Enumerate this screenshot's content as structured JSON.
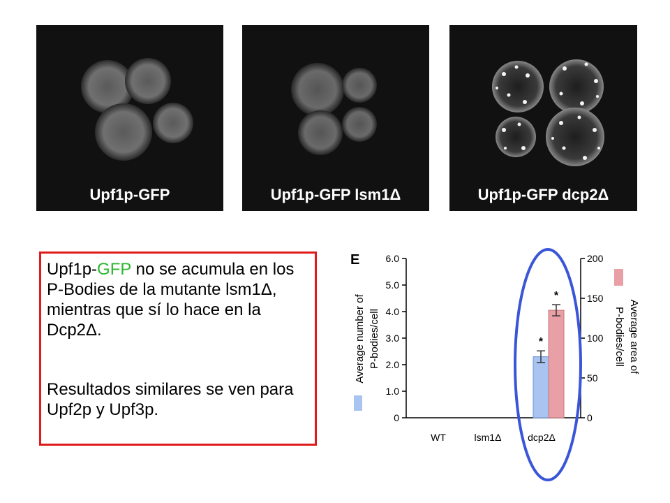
{
  "panels": [
    {
      "label": "Upf1p-GFP"
    },
    {
      "label": "Upf1p-GFP lsm1Δ"
    },
    {
      "label": "Upf1p-GFP dcp2Δ"
    }
  ],
  "text": {
    "p1_before": "Upf1p-",
    "p1_green": "GFP",
    "p1_after": " no se acumula en los P-Bodies de la mutante lsm1Δ, mientras que sí lo hace en la Dcp2Δ.",
    "p2": "Resultados similares se ven para Upf2p y Upf3p."
  },
  "colors": {
    "box_border": "#e01b1b",
    "highlight": "#2fb62f",
    "ellipse": "#3a56d8",
    "series_number": "#a9c4f0",
    "series_area": "#e8a0a6"
  },
  "chart_data": {
    "type": "bar",
    "panel_letter": "E",
    "categories": [
      "WT",
      "lsm1Δ",
      "dcp2Δ"
    ],
    "series": [
      {
        "axis": "left",
        "values": [
          0,
          0,
          2.3
        ],
        "errors": [
          0,
          0,
          0.22
        ],
        "significant": [
          false,
          false,
          true
        ]
      },
      {
        "axis": "right",
        "values": [
          0,
          0,
          135
        ],
        "errors": [
          0,
          0,
          7
        ],
        "significant": [
          false,
          false,
          true
        ]
      }
    ],
    "left_axis": {
      "label_line1": "Average number of",
      "label_line2": "P-bodies/cell",
      "ylim": [
        0,
        6
      ],
      "ticks": [
        "0",
        "1.0",
        "2.0",
        "3.0",
        "4.0",
        "5.0",
        "6.0"
      ]
    },
    "right_axis": {
      "label_line1": "Average area of",
      "label_line2": "P-bodies/cell",
      "ylim": [
        0,
        200
      ],
      "ticks": [
        "0",
        "50",
        "100",
        "150",
        "200"
      ]
    },
    "annotation": "*"
  }
}
